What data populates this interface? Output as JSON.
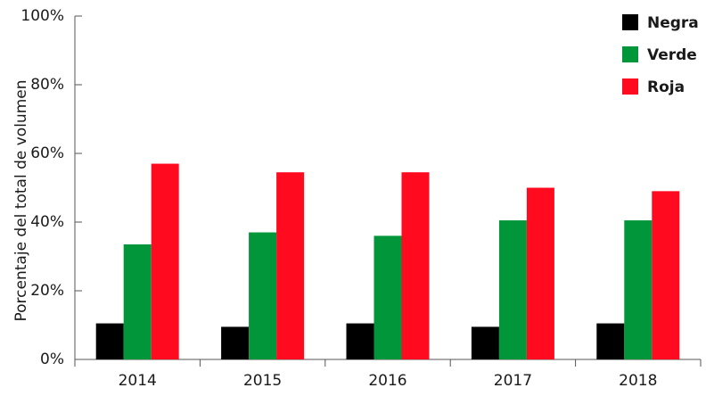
{
  "chart_data": {
    "type": "bar",
    "title": "",
    "xlabel": "",
    "ylabel": "Porcentaje del total de volumen",
    "categories": [
      "2014",
      "2015",
      "2016",
      "2017",
      "2018"
    ],
    "series": [
      {
        "name": "Negra",
        "color": "#000000",
        "values": [
          10.5,
          9.5,
          10.5,
          9.5,
          10.5
        ]
      },
      {
        "name": "Verde",
        "color": "#009639",
        "values": [
          33.5,
          37,
          36,
          40.5,
          40.5
        ]
      },
      {
        "name": "Roja",
        "color": "#ff0a1e",
        "values": [
          57,
          54.5,
          54.5,
          50,
          49
        ]
      }
    ],
    "ylim": [
      0,
      100
    ],
    "y_ticks": [
      0,
      20,
      40,
      60,
      80,
      100
    ],
    "y_tick_labels": [
      "0%",
      "20%",
      "40%",
      "60%",
      "80%",
      "100%"
    ],
    "grid": false,
    "legend_position": "top-right"
  }
}
